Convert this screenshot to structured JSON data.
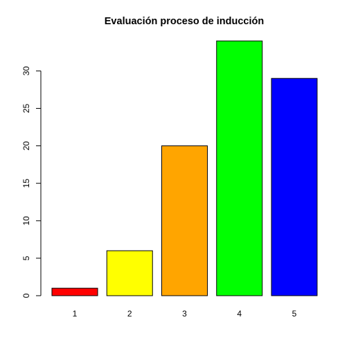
{
  "chart_data": {
    "type": "bar",
    "title": "Evaluación proceso de inducción",
    "xlabel": "",
    "ylabel": "",
    "categories": [
      "1",
      "2",
      "3",
      "4",
      "5"
    ],
    "values": [
      1,
      6,
      20,
      34,
      29
    ],
    "colors": [
      "#ff0000",
      "#ffff00",
      "#ffa500",
      "#00ff00",
      "#0000ff"
    ],
    "ylim": [
      0,
      34
    ],
    "yticks": [
      0,
      5,
      10,
      15,
      20,
      25,
      30
    ],
    "grid": false,
    "legend": "none"
  }
}
